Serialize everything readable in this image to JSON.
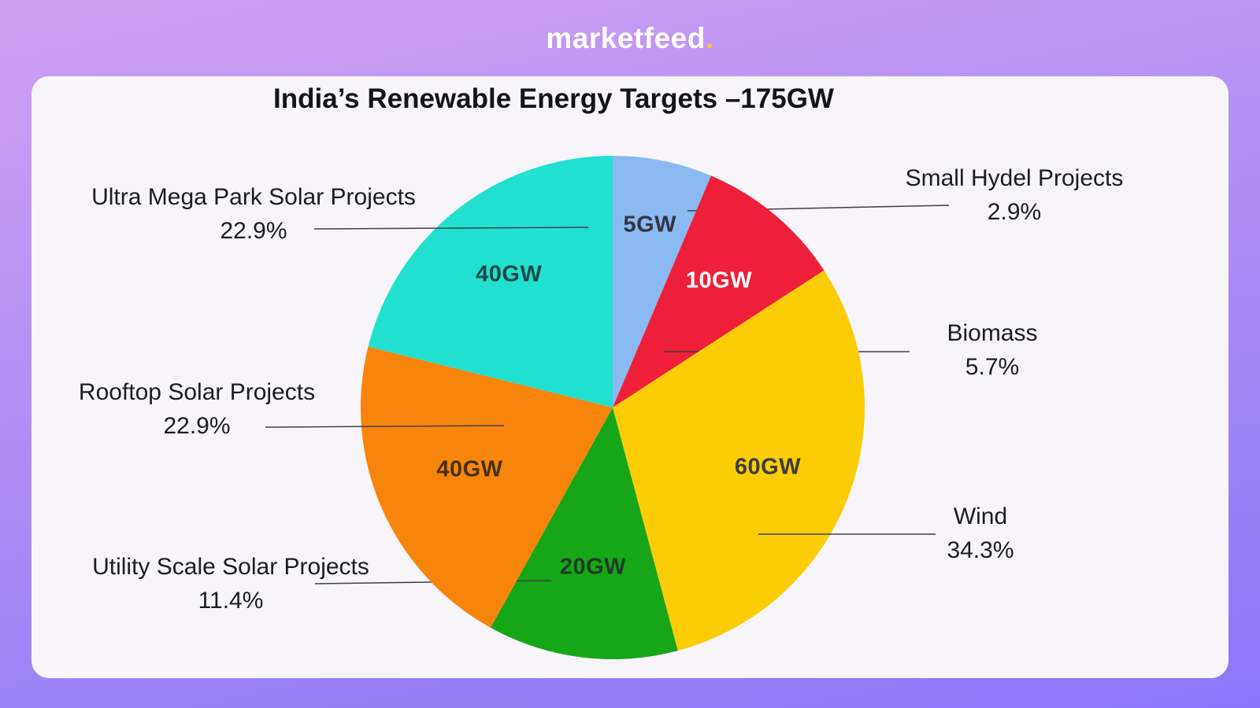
{
  "header": {
    "logo_text": "marketfeed",
    "logo_dot": "."
  },
  "chart_data": {
    "type": "pie",
    "title": "India’s Renewable Energy Targets –175GW",
    "total_value": 175,
    "unit": "GW",
    "start_angle_deg": 0,
    "direction": "clockwise",
    "legend_position": "outside-callouts",
    "slices": [
      {
        "label": "Small Hydel Projects",
        "value": 5,
        "value_label": "5GW",
        "pct_label": "2.9%",
        "color": "#8ab9f2",
        "value_text_color": "#343440"
      },
      {
        "label": "Biomass",
        "value": 10,
        "value_label": "10GW",
        "pct_label": "5.7%",
        "color": "#ee2039",
        "value_text_color": "#ffffff"
      },
      {
        "label": "Wind",
        "value": 60,
        "value_label": "60GW",
        "pct_label": "34.3%",
        "color": "#fccd06",
        "value_text_color": "#3c3c46"
      },
      {
        "label": "Utility Scale Solar Projects",
        "value": 20,
        "value_label": "20GW",
        "pct_label": "11.4%",
        "color": "#17a617",
        "value_text_color": "#1e3c26"
      },
      {
        "label": "Rooftop Solar Projects",
        "value": 40,
        "value_label": "40GW",
        "pct_label": "22.9%",
        "color": "#f8850b",
        "value_text_color": "#46320f"
      },
      {
        "label": "Ultra Mega Park Solar Projects",
        "value": 40,
        "value_label": "40GW",
        "pct_label": "22.9%",
        "color": "#21e0cf",
        "value_text_color": "#1c4a48"
      }
    ]
  },
  "colors": {
    "background_top": "#cd9ff2",
    "background_bottom": "#8b76f8",
    "card": "#f7f4fa",
    "title_text": "#14141c",
    "label_text": "#1c1c25",
    "leader_line": "#3f3f49",
    "logo_text": "#ffffff",
    "logo_dot": "#f2c230"
  }
}
